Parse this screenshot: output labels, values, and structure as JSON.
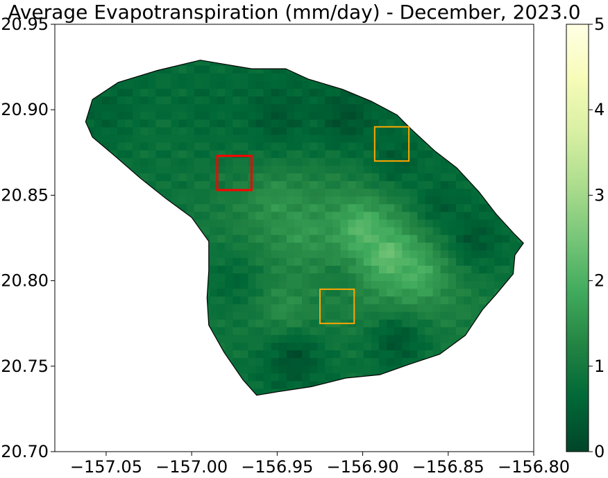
{
  "chart_data": {
    "type": "heatmap",
    "title": "Average Evapotranspiration (mm/day) - December, 2023.0",
    "xlabel": "",
    "ylabel": "",
    "xlim": [
      -157.08,
      -156.8
    ],
    "ylim": [
      20.7,
      20.95
    ],
    "x_ticks": [
      -157.05,
      -157.0,
      -156.95,
      -156.9,
      -156.85,
      -156.8
    ],
    "x_tick_labels": [
      "−157.05",
      "−157.00",
      "−156.95",
      "−156.90",
      "−156.85",
      "−156.80"
    ],
    "y_ticks": [
      20.7,
      20.75,
      20.8,
      20.85,
      20.9,
      20.95
    ],
    "y_tick_labels": [
      "20.70",
      "20.75",
      "20.80",
      "20.85",
      "20.90",
      "20.95"
    ],
    "grid": false,
    "colorbar": {
      "colormap": "YlGn_r",
      "min": 0,
      "max": 5,
      "ticks": [
        0,
        1,
        2,
        3,
        4,
        5
      ],
      "tick_labels": [
        "0",
        "1",
        "2",
        "3",
        "4",
        "5"
      ],
      "colors": [
        "#004529",
        "#006837",
        "#238443",
        "#41ab5d",
        "#78c679",
        "#addd8e",
        "#d9f0a3",
        "#f7fcb9",
        "#ffffe5"
      ]
    },
    "island_outline": [
      [
        -157.062,
        20.893
      ],
      [
        -157.058,
        20.906
      ],
      [
        -157.043,
        20.916
      ],
      [
        -157.02,
        20.923
      ],
      [
        -156.995,
        20.929
      ],
      [
        -156.965,
        20.924
      ],
      [
        -156.945,
        20.924
      ],
      [
        -156.932,
        20.918
      ],
      [
        -156.912,
        20.912
      ],
      [
        -156.895,
        20.905
      ],
      [
        -156.88,
        20.897
      ],
      [
        -156.872,
        20.889
      ],
      [
        -156.858,
        20.876
      ],
      [
        -156.845,
        20.866
      ],
      [
        -156.832,
        20.852
      ],
      [
        -156.822,
        20.839
      ],
      [
        -156.811,
        20.827
      ],
      [
        -156.806,
        20.822
      ],
      [
        -156.811,
        20.815
      ],
      [
        -156.812,
        20.804
      ],
      [
        -156.822,
        20.792
      ],
      [
        -156.83,
        20.783
      ],
      [
        -156.84,
        20.768
      ],
      [
        -156.855,
        20.757
      ],
      [
        -156.873,
        20.751
      ],
      [
        -156.89,
        20.745
      ],
      [
        -156.91,
        20.743
      ],
      [
        -156.93,
        20.738
      ],
      [
        -156.95,
        20.735
      ],
      [
        -156.962,
        20.733
      ],
      [
        -156.97,
        20.742
      ],
      [
        -156.981,
        20.758
      ],
      [
        -156.99,
        20.774
      ],
      [
        -156.991,
        20.79
      ],
      [
        -156.99,
        20.806
      ],
      [
        -156.99,
        20.823
      ],
      [
        -157.0,
        20.837
      ],
      [
        -157.015,
        20.848
      ],
      [
        -157.03,
        20.86
      ],
      [
        -157.045,
        20.873
      ],
      [
        -157.058,
        20.884
      ]
    ],
    "et_samples": [
      {
        "lon": -157.05,
        "lat": 20.9,
        "value": 0.5
      },
      {
        "lon": -157.02,
        "lat": 20.88,
        "value": 0.8
      },
      {
        "lon": -156.99,
        "lat": 20.9,
        "value": 0.6
      },
      {
        "lon": -156.95,
        "lat": 20.895,
        "value": 0.3
      },
      {
        "lon": -156.91,
        "lat": 20.895,
        "value": 0.2
      },
      {
        "lon": -156.88,
        "lat": 20.87,
        "value": 0.4
      },
      {
        "lon": -156.855,
        "lat": 20.845,
        "value": 0.4
      },
      {
        "lon": -156.835,
        "lat": 20.825,
        "value": 0.3
      },
      {
        "lon": -156.95,
        "lat": 20.845,
        "value": 1.5
      },
      {
        "lon": -156.935,
        "lat": 20.83,
        "value": 1.6
      },
      {
        "lon": -156.9,
        "lat": 20.83,
        "value": 2.2
      },
      {
        "lon": -156.885,
        "lat": 20.815,
        "value": 2.4
      },
      {
        "lon": -156.87,
        "lat": 20.805,
        "value": 2.0
      },
      {
        "lon": -156.945,
        "lat": 20.785,
        "value": 1.4
      },
      {
        "lon": -156.915,
        "lat": 20.8,
        "value": 1.0
      },
      {
        "lon": -156.975,
        "lat": 20.8,
        "value": 0.6
      },
      {
        "lon": -156.94,
        "lat": 20.755,
        "value": 0.2
      },
      {
        "lon": -156.88,
        "lat": 20.765,
        "value": 0.3
      }
    ],
    "highlight_boxes": [
      {
        "color": "#ff0000",
        "lon": [
          -156.985,
          -156.965
        ],
        "lat": [
          20.853,
          20.873
        ]
      },
      {
        "color": "#ffa500",
        "lon": [
          -156.893,
          -156.873
        ],
        "lat": [
          20.87,
          20.89
        ]
      },
      {
        "color": "#ffa500",
        "lon": [
          -156.925,
          -156.905
        ],
        "lat": [
          20.775,
          20.795
        ]
      }
    ]
  }
}
